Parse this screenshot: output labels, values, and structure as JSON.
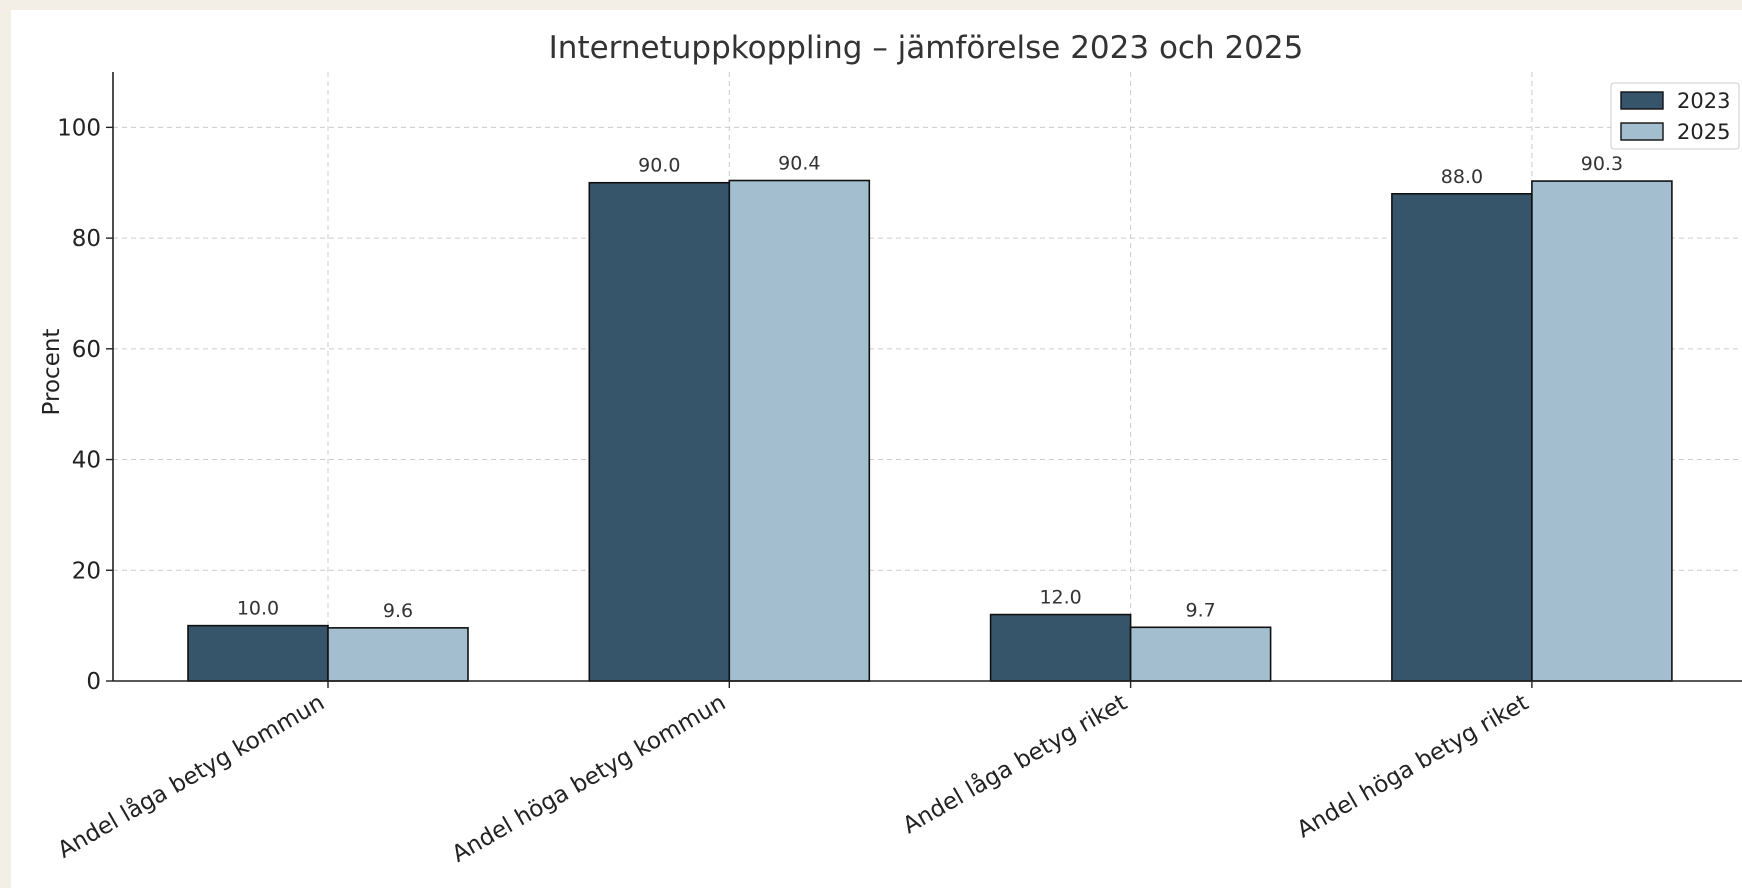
{
  "chart_data": {
    "type": "bar",
    "title": "Internetuppkoppling – jämförelse 2023 och 2025",
    "xlabel": "",
    "ylabel": "Procent",
    "ylim": [
      0,
      110
    ],
    "yticks": [
      0,
      20,
      40,
      60,
      80,
      100
    ],
    "categories": [
      "Andel låga betyg kommun",
      "Andel höga betyg kommun",
      "Andel låga betyg riket",
      "Andel höga betyg riket"
    ],
    "series": [
      {
        "name": "2023",
        "color": "#36556a",
        "values": [
          10.0,
          90.0,
          12.0,
          88.0
        ],
        "labels": [
          "10.0",
          "90.0",
          "12.0",
          "88.0"
        ]
      },
      {
        "name": "2025",
        "color": "#a3bfcf",
        "values": [
          9.6,
          90.4,
          9.7,
          90.3
        ],
        "labels": [
          "9.6",
          "90.4",
          "9.7",
          "90.3"
        ]
      }
    ],
    "grid": true,
    "legend": "top-right"
  }
}
